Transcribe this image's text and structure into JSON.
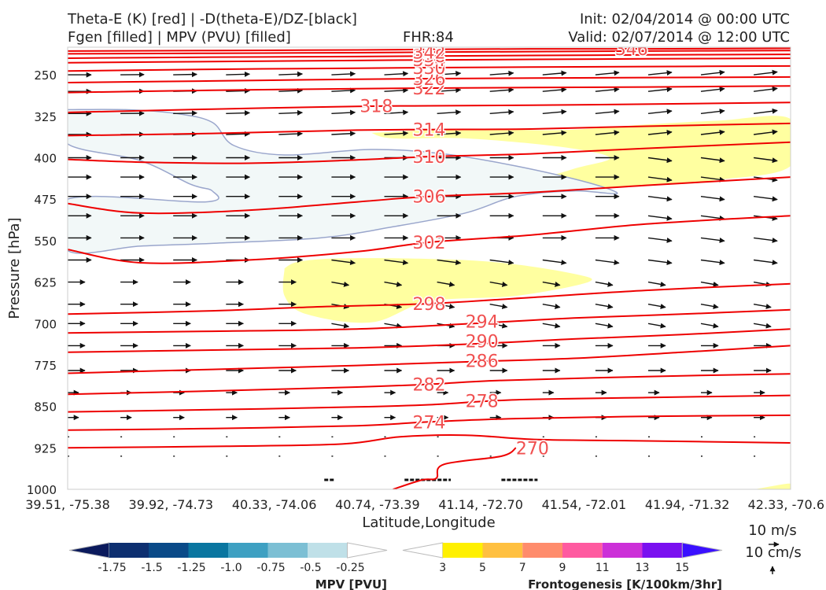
{
  "header": {
    "title_line1": "Theta-E (K) [red] | -D(theta-E)/DZ-[black]",
    "title_line2": "Fgen [filled] | MPV (PVU) [filled]",
    "fhr": "FHR:84",
    "init": "Init: 02/04/2014 @ 00:00 UTC",
    "valid": "Valid: 02/07/2014 @ 12:00 UTC"
  },
  "colors": {
    "theta_e": "#ee0000",
    "theta_e_label": "#f05050",
    "vectors": "#111111",
    "mpv_fill": "#f2f8f8",
    "mpv_edge": "#9aa6cc",
    "fgen_fill": "#ffffa0"
  },
  "chart_data": {
    "type": "cross-section",
    "xlabel": "Latitude,Longitude",
    "ylabel": "Pressure [hPa]",
    "x_ticks": [
      "39.51, -75.38",
      "39.92, -74.73",
      "40.33, -74.06",
      "40.74, -73.39",
      "41.14, -72.70",
      "41.54, -72.01",
      "41.94, -71.32",
      "42.33, -70.6"
    ],
    "y_ticks": [
      250,
      325,
      400,
      475,
      550,
      625,
      700,
      775,
      850,
      925,
      1000
    ],
    "ylim": [
      1000,
      200
    ],
    "theta_e_contours": [
      {
        "level": 270,
        "points": [
          [
            0,
            925
          ],
          [
            0.22,
            922
          ],
          [
            0.38,
            918
          ],
          [
            0.46,
            905
          ],
          [
            0.55,
            902
          ],
          [
            0.65,
            910
          ],
          [
            0.78,
            912
          ],
          [
            1,
            916
          ]
        ]
      },
      {
        "level": 274,
        "points": [
          [
            0,
            893
          ],
          [
            0.2,
            890
          ],
          [
            0.4,
            885
          ],
          [
            0.5,
            878
          ],
          [
            0.62,
            872
          ],
          [
            0.8,
            868
          ],
          [
            1,
            866
          ]
        ]
      },
      {
        "level": 278,
        "points": [
          [
            0,
            860
          ],
          [
            0.2,
            856
          ],
          [
            0.4,
            851
          ],
          [
            0.5,
            847
          ],
          [
            0.62,
            838
          ],
          [
            0.8,
            834
          ],
          [
            1,
            830
          ]
        ]
      },
      {
        "level": 282,
        "points": [
          [
            0,
            828
          ],
          [
            0.2,
            822
          ],
          [
            0.4,
            815
          ],
          [
            0.5,
            810
          ],
          [
            0.6,
            803
          ],
          [
            0.8,
            796
          ],
          [
            1,
            791
          ]
        ]
      },
      {
        "level": 286,
        "points": [
          [
            0,
            790
          ],
          [
            0.2,
            783
          ],
          [
            0.4,
            776
          ],
          [
            0.56,
            769
          ],
          [
            0.7,
            763
          ],
          [
            0.85,
            752
          ],
          [
            1,
            740
          ]
        ]
      },
      {
        "level": 290,
        "points": [
          [
            0,
            752
          ],
          [
            0.2,
            748
          ],
          [
            0.4,
            744
          ],
          [
            0.56,
            737
          ],
          [
            0.7,
            728
          ],
          [
            0.85,
            720
          ],
          [
            1,
            710
          ]
        ]
      },
      {
        "level": 294,
        "points": [
          [
            0,
            717
          ],
          [
            0.2,
            714
          ],
          [
            0.4,
            710
          ],
          [
            0.56,
            700
          ],
          [
            0.7,
            690
          ],
          [
            0.85,
            683
          ],
          [
            1,
            675
          ]
        ]
      },
      {
        "level": 298,
        "points": [
          [
            0,
            683
          ],
          [
            0.2,
            677
          ],
          [
            0.34,
            670
          ],
          [
            0.5,
            664
          ],
          [
            0.64,
            653
          ],
          [
            0.8,
            640
          ],
          [
            1,
            628
          ]
        ]
      },
      {
        "level": 302,
        "points": [
          [
            0,
            566
          ],
          [
            0.1,
            590
          ],
          [
            0.25,
            585
          ],
          [
            0.4,
            570
          ],
          [
            0.5,
            553
          ],
          [
            0.64,
            540
          ],
          [
            0.8,
            520
          ],
          [
            1,
            505
          ]
        ]
      },
      {
        "level": 306,
        "points": [
          [
            0,
            483
          ],
          [
            0.1,
            500
          ],
          [
            0.25,
            495
          ],
          [
            0.4,
            480
          ],
          [
            0.5,
            470
          ],
          [
            0.64,
            463
          ],
          [
            0.8,
            450
          ],
          [
            1,
            435
          ]
        ]
      },
      {
        "level": 310,
        "points": [
          [
            0,
            403
          ],
          [
            0.1,
            408
          ],
          [
            0.25,
            410
          ],
          [
            0.4,
            404
          ],
          [
            0.5,
            398
          ],
          [
            0.64,
            393
          ],
          [
            0.8,
            383
          ],
          [
            1,
            372
          ]
        ]
      },
      {
        "level": 314,
        "points": [
          [
            0,
            360
          ],
          [
            0.2,
            356
          ],
          [
            0.4,
            350
          ],
          [
            0.5,
            349
          ],
          [
            0.64,
            348
          ],
          [
            0.8,
            343
          ],
          [
            1,
            338
          ]
        ]
      },
      {
        "level": 318,
        "points": [
          [
            0,
            318
          ],
          [
            0.2,
            312
          ],
          [
            0.4,
            307
          ],
          [
            0.5,
            306
          ],
          [
            0.64,
            305
          ],
          [
            0.8,
            303
          ],
          [
            1,
            300
          ]
        ]
      },
      {
        "level": 322,
        "points": [
          [
            0,
            282
          ],
          [
            0.2,
            278
          ],
          [
            0.4,
            275
          ],
          [
            0.5,
            274
          ],
          [
            0.64,
            273
          ],
          [
            0.8,
            272
          ],
          [
            1,
            270
          ]
        ]
      },
      {
        "level": 326,
        "points": [
          [
            0,
            264
          ],
          [
            0.2,
            261
          ],
          [
            0.4,
            258
          ],
          [
            0.5,
            257
          ],
          [
            0.64,
            256
          ],
          [
            0.8,
            255
          ],
          [
            1,
            254
          ]
        ]
      },
      {
        "level": 330,
        "points": [
          [
            0,
            243
          ],
          [
            0.2,
            240
          ],
          [
            0.4,
            238
          ],
          [
            0.5,
            237
          ],
          [
            0.64,
            236
          ],
          [
            0.8,
            235
          ],
          [
            1,
            234
          ]
        ]
      },
      {
        "level": 334,
        "points": [
          [
            0,
            228
          ],
          [
            0.2,
            226
          ],
          [
            0.4,
            224
          ],
          [
            0.5,
            223
          ],
          [
            0.64,
            222
          ],
          [
            0.8,
            221
          ],
          [
            1,
            220
          ]
        ]
      },
      {
        "level": 338,
        "points": [
          [
            0,
            220
          ],
          [
            0.2,
            218
          ],
          [
            0.4,
            217
          ],
          [
            0.5,
            216
          ],
          [
            0.64,
            215
          ],
          [
            0.8,
            214
          ],
          [
            1,
            213
          ]
        ]
      },
      {
        "level": 342,
        "points": [
          [
            0,
            212
          ],
          [
            0.2,
            211
          ],
          [
            0.4,
            210
          ],
          [
            0.5,
            209
          ],
          [
            0.64,
            208
          ],
          [
            0.8,
            207
          ],
          [
            1,
            206
          ]
        ]
      },
      {
        "level": 346,
        "points": [
          [
            0,
            207
          ],
          [
            0.2,
            206
          ],
          [
            0.4,
            205
          ],
          [
            0.5,
            204
          ],
          [
            0.64,
            203
          ],
          [
            0.8,
            203
          ],
          [
            1,
            202
          ]
        ]
      }
    ],
    "contour_labels": [
      {
        "text": "270",
        "x": 0.643,
        "p": 925
      },
      {
        "text": "274",
        "x": 0.5,
        "p": 878
      },
      {
        "text": "278",
        "x": 0.573,
        "p": 840
      },
      {
        "text": "282",
        "x": 0.5,
        "p": 810
      },
      {
        "text": "286",
        "x": 0.573,
        "p": 767
      },
      {
        "text": "290",
        "x": 0.573,
        "p": 732
      },
      {
        "text": "294",
        "x": 0.573,
        "p": 696
      },
      {
        "text": "298",
        "x": 0.5,
        "p": 664
      },
      {
        "text": "302",
        "x": 0.5,
        "p": 553
      },
      {
        "text": "306",
        "x": 0.5,
        "p": 470
      },
      {
        "text": "310",
        "x": 0.5,
        "p": 398
      },
      {
        "text": "314",
        "x": 0.5,
        "p": 349
      },
      {
        "text": "318",
        "x": 0.427,
        "p": 306
      },
      {
        "text": "322",
        "x": 0.5,
        "p": 274
      },
      {
        "text": "326",
        "x": 0.5,
        "p": 257
      },
      {
        "text": "330",
        "x": 0.5,
        "p": 237
      },
      {
        "text": "334",
        "x": 0.5,
        "p": 223
      },
      {
        "text": "338",
        "x": 0.5,
        "p": 216
      },
      {
        "text": "342",
        "x": 0.5,
        "p": 209
      },
      {
        "text": "346",
        "x": 0.78,
        "p": 203
      }
    ],
    "mpv_region_points": [
      [
        0,
        313
      ],
      [
        0.08,
        313
      ],
      [
        0.15,
        320
      ],
      [
        0.2,
        336
      ],
      [
        0.23,
        378
      ],
      [
        0.3,
        395
      ],
      [
        0.42,
        385
      ],
      [
        0.52,
        393
      ],
      [
        0.62,
        415
      ],
      [
        0.72,
        445
      ],
      [
        0.76,
        465
      ],
      [
        0.7,
        460
      ],
      [
        0.62,
        470
      ],
      [
        0.55,
        500
      ],
      [
        0.45,
        525
      ],
      [
        0.35,
        545
      ],
      [
        0.2,
        555
      ],
      [
        0.1,
        560
      ],
      [
        0,
        568
      ],
      [
        0,
        475
      ],
      [
        0.19,
        480
      ],
      [
        0.2,
        460
      ],
      [
        0.17,
        448
      ],
      [
        0.1,
        405
      ],
      [
        0,
        375
      ]
    ],
    "fgen_regions": [
      [
        [
          0.3,
          600
        ],
        [
          0.32,
          588
        ],
        [
          0.38,
          582
        ],
        [
          0.5,
          583
        ],
        [
          0.6,
          590
        ],
        [
          0.7,
          610
        ],
        [
          0.72,
          625
        ],
        [
          0.62,
          650
        ],
        [
          0.5,
          660
        ],
        [
          0.42,
          698
        ],
        [
          0.33,
          683
        ],
        [
          0.3,
          650
        ]
      ],
      [
        [
          0.42,
          355
        ],
        [
          0.55,
          348
        ],
        [
          0.68,
          350
        ],
        [
          0.8,
          340
        ],
        [
          0.9,
          333
        ],
        [
          1,
          330
        ],
        [
          1,
          415
        ],
        [
          0.9,
          440
        ],
        [
          0.8,
          450
        ],
        [
          0.7,
          455
        ],
        [
          0.66,
          440
        ],
        [
          0.7,
          420
        ],
        [
          0.75,
          400
        ],
        [
          0.68,
          380
        ],
        [
          0.55,
          365
        ],
        [
          0.45,
          365
        ]
      ],
      [
        [
          0.95,
          1000
        ],
        [
          0.98,
          993
        ],
        [
          1,
          990
        ],
        [
          1,
          1000
        ]
      ]
    ],
    "vector_columns": [
      0,
      0.073,
      0.146,
      0.219,
      0.292,
      0.365,
      0.438,
      0.511,
      0.584,
      0.657,
      0.73,
      0.803,
      0.876,
      0.949
    ],
    "vector_rows": [
      250,
      280,
      320,
      358,
      400,
      435,
      470,
      505,
      545,
      585,
      625,
      665,
      700,
      740,
      785,
      825,
      870,
      905,
      940
    ],
    "mpv_colorbar": {
      "label": "MPV [PVU]",
      "ticks": [
        "-1.75",
        "-1.5",
        "-1.25",
        "-1.0",
        "-0.75",
        "-0.5",
        "-0.25"
      ],
      "colors": [
        "#0b1a5c",
        "#0d2f70",
        "#0a4a88",
        "#0a76a0",
        "#3ea0c2",
        "#7cbfd4",
        "#bfe0e8",
        "#ffffff"
      ]
    },
    "fgen_colorbar": {
      "label": "Frontogenesis [K/100km/3hr]",
      "ticks": [
        "3",
        "5",
        "7",
        "9",
        "11",
        "13",
        "15"
      ],
      "colors": [
        "#ffffff",
        "#fff000",
        "#ffc040",
        "#ff8c6c",
        "#ff5aa0",
        "#cc30d8",
        "#7a10f0",
        "#3a10ff"
      ]
    },
    "vector_key": {
      "label_top": "10 m/s",
      "label_bottom": "10 cm/s"
    }
  }
}
